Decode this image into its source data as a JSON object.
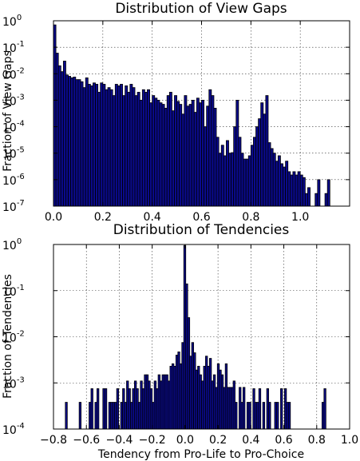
{
  "chart_data": [
    {
      "type": "bar",
      "title": "Distribution of View Gaps",
      "xlabel": "",
      "ylabel": "Fraction of View Gaps",
      "yscale": "log",
      "xlim": [
        0.0,
        1.2
      ],
      "ylim": [
        1e-07,
        1
      ],
      "grid": true,
      "color": "#0a0a8c",
      "xticks": [
        0.0,
        0.2,
        0.4,
        0.6,
        0.8,
        1.0
      ],
      "xtick_labels": [
        "0.0",
        "0.2",
        "0.4",
        "0.6",
        "0.8",
        "1.0"
      ],
      "yticks": [
        1e-07,
        1e-06,
        1e-05,
        0.0001,
        0.001,
        0.01,
        0.1,
        1
      ],
      "ytick_labels": [
        {
          "base": "10",
          "exp": "-7"
        },
        {
          "base": "10",
          "exp": "-6"
        },
        {
          "base": "10",
          "exp": "-5"
        },
        {
          "base": "10",
          "exp": "-4"
        },
        {
          "base": "10",
          "exp": "-3"
        },
        {
          "base": "10",
          "exp": "-2"
        },
        {
          "base": "10",
          "exp": "-1"
        },
        {
          "base": "10",
          "exp": "0"
        }
      ],
      "bin_width": 0.01,
      "x": [
        0.0,
        0.01,
        0.02,
        0.03,
        0.04,
        0.05,
        0.06,
        0.07,
        0.08,
        0.09,
        0.1,
        0.11,
        0.12,
        0.13,
        0.14,
        0.15,
        0.16,
        0.17,
        0.18,
        0.19,
        0.2,
        0.21,
        0.22,
        0.23,
        0.24,
        0.25,
        0.26,
        0.27,
        0.28,
        0.29,
        0.3,
        0.31,
        0.32,
        0.33,
        0.34,
        0.35,
        0.36,
        0.37,
        0.38,
        0.39,
        0.4,
        0.41,
        0.42,
        0.43,
        0.44,
        0.45,
        0.46,
        0.47,
        0.48,
        0.49,
        0.5,
        0.51,
        0.52,
        0.53,
        0.54,
        0.55,
        0.56,
        0.57,
        0.58,
        0.59,
        0.6,
        0.61,
        0.62,
        0.63,
        0.64,
        0.65,
        0.66,
        0.67,
        0.68,
        0.69,
        0.7,
        0.71,
        0.72,
        0.73,
        0.74,
        0.75,
        0.76,
        0.77,
        0.78,
        0.79,
        0.8,
        0.81,
        0.82,
        0.83,
        0.84,
        0.85,
        0.86,
        0.87,
        0.88,
        0.89,
        0.9,
        0.91,
        0.92,
        0.93,
        0.94,
        0.95,
        0.96,
        0.97,
        0.98,
        0.99,
        1.0,
        1.01,
        1.02,
        1.03,
        1.06,
        1.07,
        1.1,
        1.11
      ],
      "values": [
        0.7,
        0.06,
        0.02,
        0.012,
        0.03,
        0.009,
        0.008,
        0.007,
        0.0075,
        0.006,
        0.006,
        0.005,
        0.003,
        0.007,
        0.004,
        0.0035,
        0.0045,
        0.004,
        0.002,
        0.0045,
        0.004,
        0.0025,
        0.003,
        0.0025,
        0.0015,
        0.004,
        0.0035,
        0.004,
        0.0015,
        0.0035,
        0.002,
        0.004,
        0.003,
        0.0015,
        0.002,
        0.001,
        0.0025,
        0.002,
        0.0025,
        0.0008,
        0.0015,
        0.0012,
        0.001,
        0.0008,
        0.0007,
        0.0005,
        0.0015,
        0.002,
        0.0004,
        0.0015,
        0.0009,
        0.0007,
        0.0003,
        0.0015,
        0.0006,
        0.0007,
        0.001,
        0.00035,
        0.0012,
        0.0008,
        0.001,
        0.0001,
        0.0006,
        0.0025,
        0.0015,
        0.0005,
        4e-05,
        1e-05,
        2e-05,
        8e-06,
        3e-05,
        1e-05,
        1.05e-05,
        0.0001,
        0.001,
        4e-05,
        1e-05,
        6e-06,
        6e-06,
        8e-06,
        2e-05,
        4e-05,
        0.0001,
        0.0002,
        0.0008,
        0.0003,
        0.0015,
        2.5e-05,
        1.5e-05,
        1e-05,
        5e-06,
        8e-06,
        4e-06,
        3e-06,
        5e-06,
        2e-06,
        1.5e-06,
        2e-06,
        1.5e-06,
        2e-06,
        1.5e-06,
        1.2e-06,
        3e-07,
        5e-07,
        3e-07,
        1e-06,
        3e-07,
        1e-06
      ]
    },
    {
      "type": "bar",
      "title": "Distribution of Tendencies",
      "xlabel": "Tendency from Pro-Life to Pro-Choice",
      "ylabel": "Fraction of Tendencies",
      "yscale": "log",
      "xlim": [
        -0.8,
        1.0
      ],
      "ylim": [
        0.0001,
        1
      ],
      "grid": true,
      "color": "#0a0a8c",
      "xticks": [
        -0.8,
        -0.6,
        -0.4,
        -0.2,
        0.0,
        0.2,
        0.4,
        0.6,
        0.8,
        1.0
      ],
      "xtick_labels": [
        "−0.8",
        "−0.6",
        "−0.4",
        "−0.2",
        "0.0",
        "0.2",
        "0.4",
        "0.6",
        "0.8",
        "1.0"
      ],
      "yticks": [
        0.0001,
        0.001,
        0.01,
        0.1,
        1
      ],
      "ytick_labels": [
        {
          "base": "10",
          "exp": "-4"
        },
        {
          "base": "10",
          "exp": "-3"
        },
        {
          "base": "10",
          "exp": "-2"
        },
        {
          "base": "10",
          "exp": "-1"
        },
        {
          "base": "10",
          "exp": "0"
        }
      ],
      "bin_width": 0.012,
      "x": [
        -0.728,
        -0.644,
        -0.584,
        -0.572,
        -0.548,
        -0.536,
        -0.5,
        -0.488,
        -0.464,
        -0.452,
        -0.44,
        -0.428,
        -0.416,
        -0.392,
        -0.38,
        -0.368,
        -0.356,
        -0.344,
        -0.332,
        -0.32,
        -0.308,
        -0.296,
        -0.284,
        -0.272,
        -0.26,
        -0.248,
        -0.236,
        -0.224,
        -0.212,
        -0.2,
        -0.188,
        -0.176,
        -0.164,
        -0.152,
        -0.14,
        -0.128,
        -0.116,
        -0.104,
        -0.092,
        -0.08,
        -0.068,
        -0.056,
        -0.044,
        -0.032,
        -0.02,
        -0.008,
        0.004,
        0.016,
        0.028,
        0.04,
        0.052,
        0.064,
        0.076,
        0.088,
        0.1,
        0.112,
        0.124,
        0.136,
        0.148,
        0.16,
        0.172,
        0.184,
        0.196,
        0.208,
        0.22,
        0.232,
        0.244,
        0.256,
        0.268,
        0.28,
        0.292,
        0.304,
        0.328,
        0.34,
        0.352,
        0.376,
        0.388,
        0.412,
        0.424,
        0.436,
        0.448,
        0.472,
        0.496,
        0.508,
        0.544,
        0.556,
        0.58,
        0.604,
        0.616,
        0.628,
        0.832,
        0.844
      ],
      "values": [
        0.00038,
        0.00038,
        0.00038,
        0.00075,
        0.00038,
        0.00075,
        0.00075,
        0.00075,
        0.00038,
        0.00038,
        0.00038,
        0.00038,
        0.00075,
        0.00038,
        0.00075,
        0.00038,
        0.0011,
        0.00075,
        0.00038,
        0.00075,
        0.0011,
        0.00075,
        0.00038,
        0.0011,
        0.00075,
        0.0015,
        0.0015,
        0.0011,
        0.00075,
        0.00038,
        0.0011,
        0.00075,
        0.0015,
        0.0011,
        0.0015,
        0.0015,
        0.0015,
        0.0011,
        0.0023,
        0.0026,
        0.0023,
        0.004,
        0.0047,
        0.0026,
        0.0075,
        0.95,
        0.14,
        0.026,
        0.0038,
        0.0075,
        0.0045,
        0.0019,
        0.0023,
        0.0015,
        0.0011,
        0.0023,
        0.0038,
        0.0023,
        0.0034,
        0.0011,
        0.0015,
        0.0008,
        0.0026,
        0.0019,
        0.0015,
        0.0008,
        0.0026,
        0.0008,
        0.0008,
        0.0008,
        0.0011,
        0.00038,
        0.0008,
        0.00038,
        0.0008,
        0.00038,
        0.00038,
        0.00075,
        0.00038,
        0.00038,
        0.00075,
        0.00038,
        0.00075,
        0.00038,
        0.00038,
        0.00038,
        0.00075,
        0.00075,
        0.00038,
        0.00038,
        0.00038,
        0.00075
      ]
    }
  ]
}
